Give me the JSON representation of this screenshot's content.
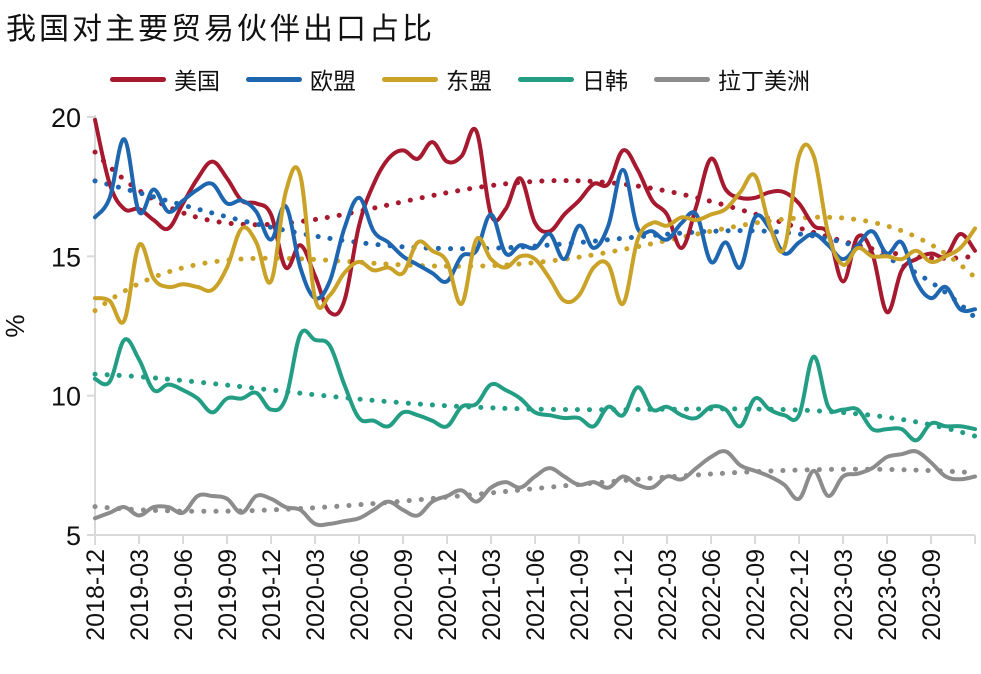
{
  "chart_data": {
    "type": "line",
    "title": "我国对主要贸易伙伴出口占比",
    "xlabel": "",
    "ylabel": "%",
    "ylim": [
      5,
      20
    ],
    "yticks": [
      5,
      10,
      15,
      20
    ],
    "grid": false,
    "legend_position": "top",
    "x_start": "2018-12",
    "x_end": "2023-12",
    "x_ticks": [
      "2018-12",
      "2019-03",
      "2019-06",
      "2019-09",
      "2019-12",
      "2020-03",
      "2020-06",
      "2020-09",
      "2020-12",
      "2021-03",
      "2021-06",
      "2021-09",
      "2021-12",
      "2022-03",
      "2022-06",
      "2022-09",
      "2022-12",
      "2023-03",
      "2023-06",
      "2023-09"
    ],
    "trendline_style": "dotted polynomial trend per series",
    "series": [
      {
        "name": "美国",
        "color": "#A6192E",
        "values": [
          19.9,
          17.6,
          16.7,
          16.7,
          16.3,
          16.0,
          16.9,
          17.8,
          18.4,
          17.8,
          17.0,
          16.9,
          16.5,
          14.6,
          15.4,
          14.3,
          13.0,
          13.4,
          16.1,
          17.6,
          18.5,
          18.8,
          18.5,
          19.1,
          18.4,
          18.6,
          19.5,
          16.5,
          16.7,
          17.8,
          16.2,
          15.9,
          16.5,
          17.0,
          17.6,
          17.6,
          18.8,
          18.1,
          17.0,
          16.5,
          15.3,
          16.8,
          18.5,
          17.4,
          17.1,
          17.1,
          17.3,
          17.3,
          16.9,
          16.1,
          15.8,
          14.1,
          15.7,
          15.1,
          13.0,
          14.5,
          14.9,
          15.1,
          15.0,
          15.8,
          15.2
        ]
      },
      {
        "name": "欧盟",
        "color": "#1F66B1",
        "values": [
          16.4,
          17.1,
          19.2,
          16.6,
          17.4,
          16.6,
          17.0,
          17.4,
          17.6,
          16.9,
          17.0,
          16.6,
          15.6,
          16.8,
          14.6,
          13.5,
          14.1,
          16.0,
          17.1,
          15.9,
          15.5,
          15.0,
          14.7,
          14.4,
          14.1,
          15.0,
          15.2,
          16.5,
          15.1,
          15.4,
          15.3,
          15.8,
          14.9,
          16.1,
          15.3,
          16.1,
          18.1,
          16.0,
          15.9,
          15.6,
          16.2,
          16.5,
          14.8,
          15.5,
          14.6,
          16.4,
          16.0,
          15.1,
          15.5,
          15.8,
          15.4,
          14.9,
          15.4,
          15.9,
          15.1,
          15.5,
          14.1,
          13.5,
          13.9,
          13.1,
          13.1
        ]
      },
      {
        "name": "东盟",
        "color": "#C9A227",
        "values": [
          13.5,
          13.4,
          12.7,
          15.4,
          14.2,
          13.9,
          14.0,
          13.9,
          13.8,
          14.6,
          16.0,
          15.5,
          14.1,
          17.3,
          17.9,
          13.5,
          13.6,
          14.4,
          14.8,
          14.5,
          14.6,
          14.4,
          15.5,
          15.2,
          14.8,
          13.3,
          15.6,
          14.9,
          14.6,
          15.0,
          14.9,
          14.2,
          13.4,
          13.6,
          14.6,
          14.7,
          13.3,
          15.6,
          16.2,
          16.1,
          16.4,
          16.3,
          16.5,
          16.7,
          17.3,
          17.9,
          16.1,
          15.3,
          18.6,
          18.6,
          15.8,
          14.7,
          15.3,
          15.0,
          15.0,
          14.9,
          15.2,
          14.8,
          15.0,
          15.3,
          16.0
        ]
      },
      {
        "name": "日韩",
        "color": "#239E85",
        "values": [
          10.6,
          10.5,
          12.0,
          11.3,
          10.2,
          10.4,
          10.2,
          9.9,
          9.4,
          9.9,
          9.9,
          10.1,
          9.5,
          9.9,
          12.2,
          12.0,
          11.8,
          10.4,
          9.2,
          9.1,
          8.9,
          9.4,
          9.3,
          9.1,
          8.9,
          9.6,
          9.7,
          10.4,
          10.2,
          9.9,
          9.4,
          9.3,
          9.2,
          9.2,
          8.9,
          9.6,
          9.3,
          10.3,
          9.5,
          9.6,
          9.3,
          9.2,
          9.6,
          9.5,
          8.9,
          9.9,
          9.5,
          9.3,
          9.3,
          11.4,
          9.6,
          9.5,
          9.5,
          8.8,
          8.8,
          8.8,
          8.4,
          9.0,
          8.9,
          8.9,
          8.8
        ]
      },
      {
        "name": "拉丁美洲",
        "color": "#8C8C8C",
        "values": [
          5.6,
          5.8,
          6.0,
          5.7,
          6.0,
          6.0,
          5.8,
          6.4,
          6.4,
          6.3,
          5.8,
          6.4,
          6.3,
          6.0,
          5.9,
          5.4,
          5.4,
          5.5,
          5.6,
          5.9,
          6.2,
          5.9,
          5.7,
          6.2,
          6.4,
          6.6,
          6.2,
          6.7,
          6.9,
          6.7,
          7.1,
          7.4,
          7.1,
          6.8,
          6.9,
          6.7,
          7.1,
          6.8,
          6.7,
          7.1,
          7.0,
          7.4,
          7.8,
          8.0,
          7.5,
          7.3,
          7.1,
          6.8,
          6.3,
          7.3,
          6.4,
          7.1,
          7.2,
          7.4,
          7.8,
          7.9,
          8.0,
          7.6,
          7.1,
          7.0,
          7.1
        ]
      }
    ]
  }
}
